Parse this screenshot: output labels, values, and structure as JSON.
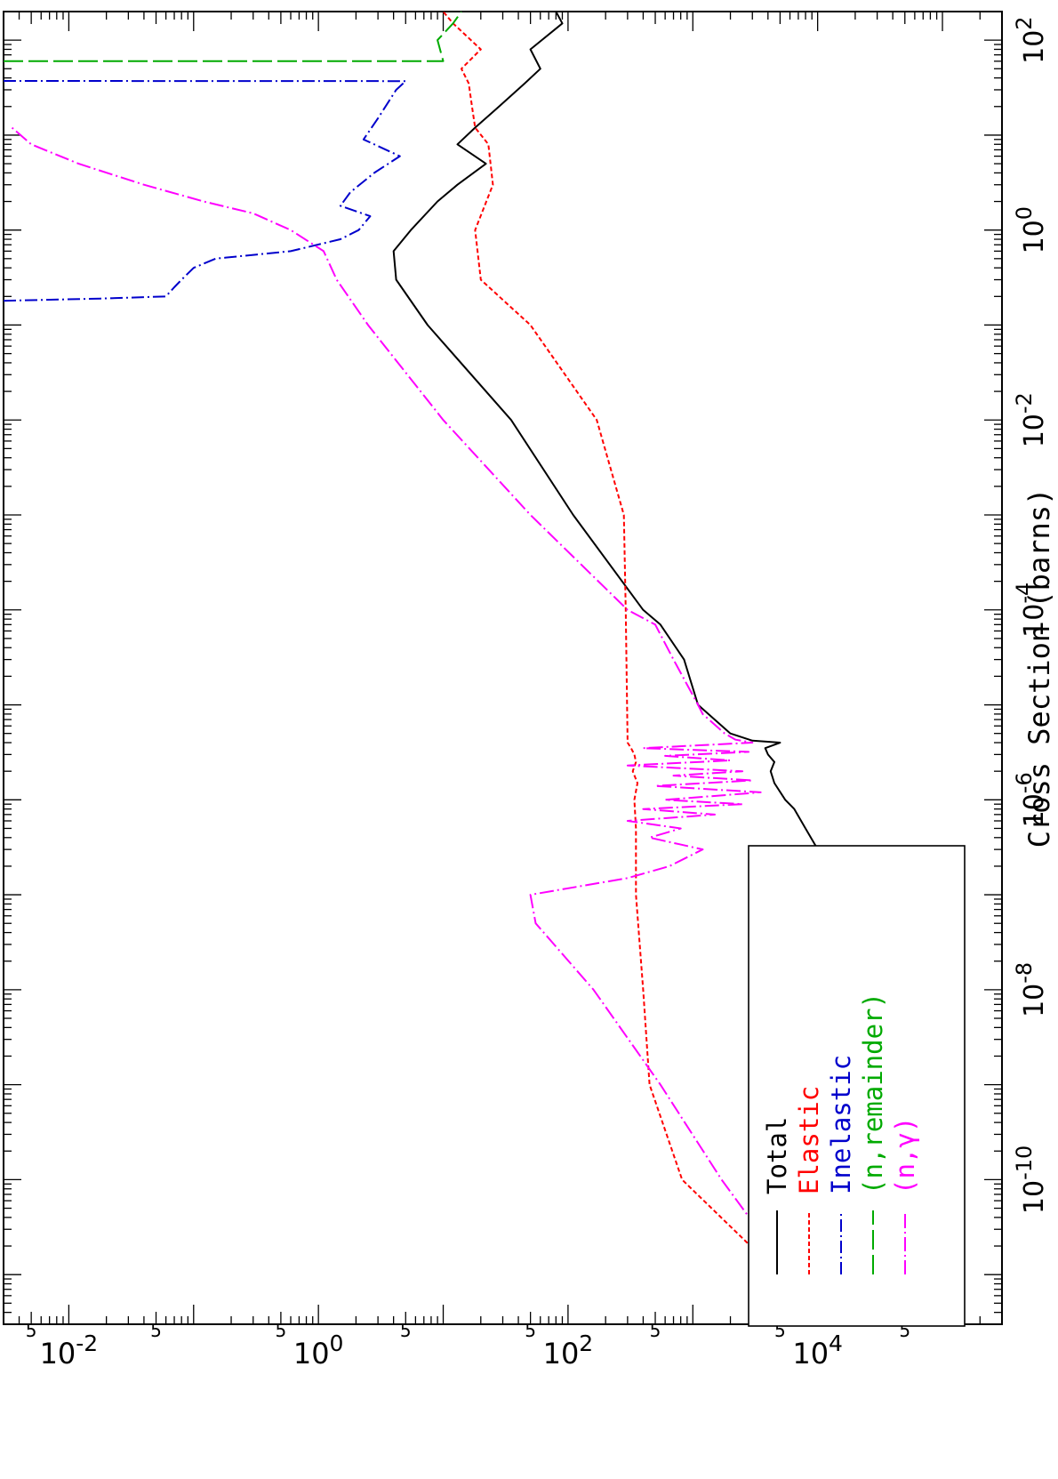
{
  "chart_data": {
    "type": "line",
    "orientation": "rotated-90",
    "ylabel": "Cross Section (barns)",
    "xlabel": "",
    "title": "",
    "x_scale": "log",
    "y_scale": "log",
    "xlim": [
      3e-12,
      200
    ],
    "ylim": [
      0.003,
      300000
    ],
    "x_tick_labels": [
      {
        "base": "10",
        "exp": "-10"
      },
      {
        "base": "10",
        "exp": "-8"
      },
      {
        "base": "10",
        "exp": "-6"
      },
      {
        "base": "10",
        "exp": "-4"
      },
      {
        "base": "10",
        "exp": "-2"
      },
      {
        "base": "10",
        "exp": "0"
      },
      {
        "base": "10",
        "exp": "2"
      }
    ],
    "y_tick_labels": [
      {
        "base": "10",
        "exp": "4"
      },
      {
        "base": "10",
        "exp": "2"
      },
      {
        "base": "10",
        "exp": "0"
      },
      {
        "base": "10",
        "exp": "-2"
      }
    ],
    "y_minor_label": "5",
    "legend_position": "bottom-left",
    "series": [
      {
        "name": "Total",
        "color": "#000000",
        "dash": "",
        "points": [
          [
            5e-12,
            150000
          ],
          [
            1e-11,
            103000
          ],
          [
            1e-10,
            32500
          ],
          [
            1e-09,
            10300
          ],
          [
            7e-09,
            3800
          ],
          [
            1.2e-08,
            4000
          ],
          [
            2e-08,
            8000
          ],
          [
            5e-08,
            22000
          ],
          [
            8e-08,
            20000
          ],
          [
            2e-07,
            12000
          ],
          [
            5e-07,
            8000
          ],
          [
            8e-07,
            6500
          ],
          [
            1e-06,
            5500
          ],
          [
            1.5e-06,
            4500
          ],
          [
            2e-06,
            4200
          ],
          [
            2.5e-06,
            4500
          ],
          [
            3e-06,
            4000
          ],
          [
            3.5e-06,
            3800
          ],
          [
            4e-06,
            5000
          ],
          [
            4.2e-06,
            3000
          ],
          [
            5e-06,
            2000
          ],
          [
            1e-05,
            1100
          ],
          [
            3e-05,
            850
          ],
          [
            7e-05,
            550
          ],
          [
            0.0001,
            400
          ],
          [
            0.001,
            110
          ],
          [
            0.01,
            35
          ],
          [
            0.1,
            7.5
          ],
          [
            0.3,
            4.2
          ],
          [
            0.6,
            4.0
          ],
          [
            1,
            5.5
          ],
          [
            2,
            9
          ],
          [
            3,
            13
          ],
          [
            5,
            22
          ],
          [
            8,
            13
          ],
          [
            12,
            18
          ],
          [
            20,
            28
          ],
          [
            35,
            45
          ],
          [
            50,
            60
          ],
          [
            80,
            50
          ],
          [
            150,
            90
          ],
          [
            200,
            80
          ]
        ]
      },
      {
        "name": "Elastic",
        "color": "#ff0000",
        "dash": "5 3",
        "points": [
          [
            5e-12,
            10000
          ],
          [
            1e-11,
            5000
          ],
          [
            1e-10,
            820
          ],
          [
            1e-09,
            450
          ],
          [
            1e-08,
            400
          ],
          [
            1e-07,
            350
          ],
          [
            5e-07,
            350
          ],
          [
            1e-06,
            340
          ],
          [
            1.5e-06,
            360
          ],
          [
            2e-06,
            330
          ],
          [
            2.5e-06,
            350
          ],
          [
            3e-06,
            340
          ],
          [
            3.5e-06,
            320
          ],
          [
            4e-06,
            300
          ],
          [
            0.0001,
            290
          ],
          [
            0.001,
            280
          ],
          [
            0.01,
            170
          ],
          [
            0.1,
            50
          ],
          [
            0.3,
            20
          ],
          [
            1,
            18
          ],
          [
            3,
            25
          ],
          [
            8,
            23
          ],
          [
            12,
            18
          ],
          [
            20,
            17
          ],
          [
            35,
            16
          ],
          [
            50,
            14
          ],
          [
            80,
            20
          ],
          [
            150,
            12
          ],
          [
            200,
            10
          ]
        ]
      },
      {
        "name": "Inelastic",
        "color": "#0000cc",
        "dash": "14 4 2 4",
        "points": [
          [
            0.18,
            0.003
          ],
          [
            0.19,
            0.018
          ],
          [
            0.2,
            0.06
          ],
          [
            0.25,
            0.07
          ],
          [
            0.3,
            0.08
          ],
          [
            0.4,
            0.1
          ],
          [
            0.5,
            0.15
          ],
          [
            0.6,
            0.6
          ],
          [
            0.8,
            1.5
          ],
          [
            1,
            2.1
          ],
          [
            1.4,
            2.6
          ],
          [
            1.8,
            1.5
          ],
          [
            2.5,
            1.8
          ],
          [
            4,
            2.8
          ],
          [
            6,
            4.5
          ],
          [
            9,
            2.3
          ],
          [
            15,
            3
          ],
          [
            30,
            4.2
          ],
          [
            37,
            5
          ],
          [
            37.2,
            0.003
          ]
        ]
      },
      {
        "name": "(n,remainder)",
        "color": "#00aa00",
        "dash": "22 6",
        "points": [
          [
            60,
            0.003
          ],
          [
            60.2,
            10
          ],
          [
            100,
            9
          ],
          [
            150,
            12
          ],
          [
            200,
            14
          ]
        ]
      },
      {
        "name": "(n,γ)",
        "color": "#ff00ff",
        "dash": "16 4 2 4",
        "points": [
          [
            5e-12,
            9000
          ],
          [
            1e-10,
            1700
          ],
          [
            1e-09,
            550
          ],
          [
            1e-08,
            160
          ],
          [
            5e-08,
            55
          ],
          [
            1e-07,
            50
          ],
          [
            1.5e-07,
            300
          ],
          [
            2e-07,
            650
          ],
          [
            3e-07,
            1200
          ],
          [
            4e-07,
            450
          ],
          [
            5e-07,
            800
          ],
          [
            6e-07,
            300
          ],
          [
            7e-07,
            1500
          ],
          [
            8e-07,
            400
          ],
          [
            9e-07,
            2500
          ],
          [
            1e-06,
            600
          ],
          [
            1.2e-06,
            3500
          ],
          [
            1.4e-06,
            500
          ],
          [
            1.6e-06,
            3000
          ],
          [
            1.8e-06,
            700
          ],
          [
            2e-06,
            2500
          ],
          [
            2.3e-06,
            300
          ],
          [
            2.6e-06,
            2000
          ],
          [
            2.9e-06,
            600
          ],
          [
            3.2e-06,
            2800
          ],
          [
            3.5e-06,
            400
          ],
          [
            4e-06,
            3000
          ],
          [
            4.3e-06,
            2200
          ],
          [
            5e-06,
            1800
          ],
          [
            8e-06,
            1200
          ],
          [
            1e-05,
            1100
          ],
          [
            3e-05,
            700
          ],
          [
            7e-05,
            500
          ],
          [
            0.0001,
            300
          ],
          [
            0.001,
            50
          ],
          [
            0.01,
            10
          ],
          [
            0.1,
            2.5
          ],
          [
            0.3,
            1.4
          ],
          [
            0.6,
            1.1
          ],
          [
            1,
            0.6
          ],
          [
            1.5,
            0.3
          ],
          [
            2,
            0.12
          ],
          [
            3,
            0.04
          ],
          [
            5,
            0.012
          ],
          [
            8,
            0.005
          ],
          [
            12,
            0.0035
          ]
        ]
      }
    ]
  }
}
